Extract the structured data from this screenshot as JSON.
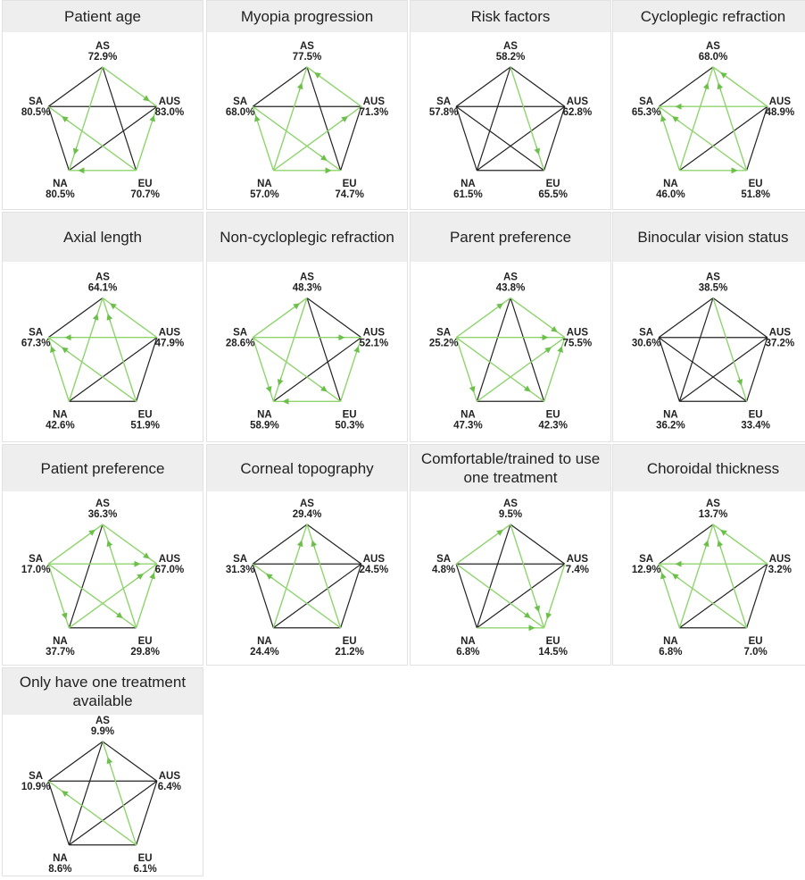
{
  "panels": [
    {
      "title": "Patient age",
      "nodes": [
        {
          "name": "AS",
          "value": "72.9%"
        },
        {
          "name": "AUS",
          "value": "83.0%"
        },
        {
          "name": "EU",
          "value": "70.7%"
        },
        {
          "name": "NA",
          "value": "80.5%"
        },
        {
          "name": "SA",
          "value": "80.5%"
        }
      ]
    },
    {
      "title": "Myopia progression",
      "nodes": [
        {
          "name": "AS",
          "value": "77.5%"
        },
        {
          "name": "AUS",
          "value": "71.3%"
        },
        {
          "name": "EU",
          "value": "74.7%"
        },
        {
          "name": "NA",
          "value": "57.0%"
        },
        {
          "name": "SA",
          "value": "68.0%"
        }
      ]
    },
    {
      "title": "Risk factors",
      "nodes": [
        {
          "name": "AS",
          "value": "58.2%"
        },
        {
          "name": "AUS",
          "value": "62.8%"
        },
        {
          "name": "EU",
          "value": "65.5%"
        },
        {
          "name": "NA",
          "value": "61.5%"
        },
        {
          "name": "SA",
          "value": "57.8%"
        }
      ]
    },
    {
      "title": "Cycloplegic refraction",
      "nodes": [
        {
          "name": "AS",
          "value": "68.0%"
        },
        {
          "name": "AUS",
          "value": "48.9%"
        },
        {
          "name": "EU",
          "value": "51.8%"
        },
        {
          "name": "NA",
          "value": "46.0%"
        },
        {
          "name": "SA",
          "value": "65.3%"
        }
      ]
    },
    {
      "title": "Axial length",
      "nodes": [
        {
          "name": "AS",
          "value": "64.1%"
        },
        {
          "name": "AUS",
          "value": "47.9%"
        },
        {
          "name": "EU",
          "value": "51.9%"
        },
        {
          "name": "NA",
          "value": "42.6%"
        },
        {
          "name": "SA",
          "value": "67.3%"
        }
      ]
    },
    {
      "title": "Non-cycloplegic refraction",
      "nodes": [
        {
          "name": "AS",
          "value": "48.3%"
        },
        {
          "name": "AUS",
          "value": "52.1%"
        },
        {
          "name": "EU",
          "value": "50.3%"
        },
        {
          "name": "NA",
          "value": "58.9%"
        },
        {
          "name": "SA",
          "value": "28.6%"
        }
      ]
    },
    {
      "title": "Parent preference",
      "nodes": [
        {
          "name": "AS",
          "value": "43.8%"
        },
        {
          "name": "AUS",
          "value": "75.5%"
        },
        {
          "name": "EU",
          "value": "42.3%"
        },
        {
          "name": "NA",
          "value": "47.3%"
        },
        {
          "name": "SA",
          "value": "25.2%"
        }
      ]
    },
    {
      "title": "Binocular vision status",
      "nodes": [
        {
          "name": "AS",
          "value": "38.5%"
        },
        {
          "name": "AUS",
          "value": "37.2%"
        },
        {
          "name": "EU",
          "value": "33.4%"
        },
        {
          "name": "NA",
          "value": "36.2%"
        },
        {
          "name": "SA",
          "value": "30.6%"
        }
      ]
    },
    {
      "title": "Patient preference",
      "nodes": [
        {
          "name": "AS",
          "value": "36.3%"
        },
        {
          "name": "AUS",
          "value": "67.0%"
        },
        {
          "name": "EU",
          "value": "29.8%"
        },
        {
          "name": "NA",
          "value": "37.7%"
        },
        {
          "name": "SA",
          "value": "17.0%"
        }
      ]
    },
    {
      "title": "Corneal topography",
      "nodes": [
        {
          "name": "AS",
          "value": "29.4%"
        },
        {
          "name": "AUS",
          "value": "24.5%"
        },
        {
          "name": "EU",
          "value": "21.2%"
        },
        {
          "name": "NA",
          "value": "24.4%"
        },
        {
          "name": "SA",
          "value": "31.3%"
        }
      ]
    },
    {
      "title": "Comfortable/trained to use one treatment",
      "nodes": [
        {
          "name": "AS",
          "value": "9.5%"
        },
        {
          "name": "AUS",
          "value": "7.4%"
        },
        {
          "name": "EU",
          "value": "14.5%"
        },
        {
          "name": "NA",
          "value": "6.8%"
        },
        {
          "name": "SA",
          "value": "4.8%"
        }
      ]
    },
    {
      "title": "Choroidal thickness",
      "nodes": [
        {
          "name": "AS",
          "value": "13.7%"
        },
        {
          "name": "AUS",
          "value": "3.2%"
        },
        {
          "name": "EU",
          "value": "7.0%"
        },
        {
          "name": "NA",
          "value": "6.8%"
        },
        {
          "name": "SA",
          "value": "12.9%"
        }
      ]
    },
    {
      "title": "Only have one treatment available",
      "nodes": [
        {
          "name": "AS",
          "value": "9.9%"
        },
        {
          "name": "AUS",
          "value": "6.4%"
        },
        {
          "name": "EU",
          "value": "6.1%"
        },
        {
          "name": "NA",
          "value": "8.6%"
        },
        {
          "name": "SA",
          "value": "10.9%"
        }
      ]
    }
  ]
}
